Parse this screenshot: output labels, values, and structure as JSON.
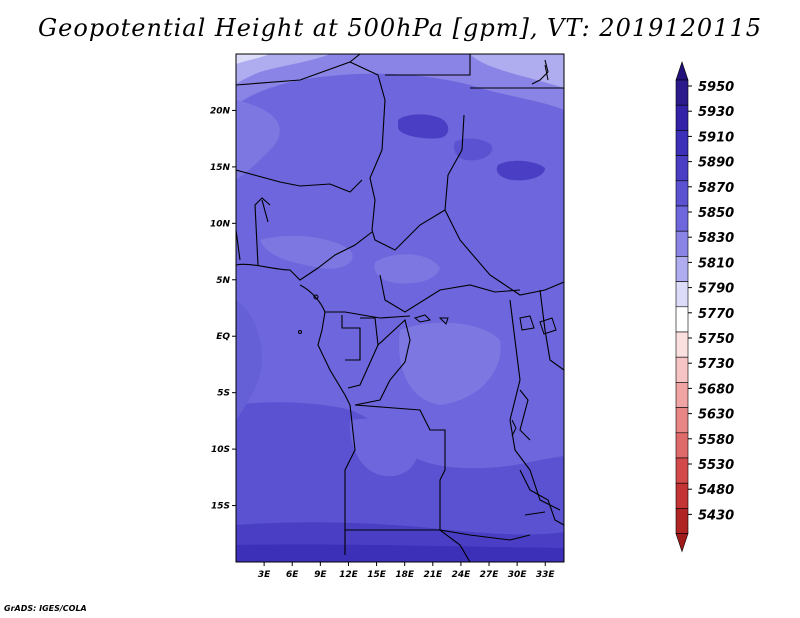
{
  "title": "Geopotential Height at 500hPa [gpm], VT: 2019120115",
  "footer": "GrADS: IGES/COLA",
  "map": {
    "lon_range": [
      0,
      35
    ],
    "lat_range": [
      -20,
      25
    ],
    "lat_ticks": [
      {
        "value": 20,
        "label": "20N"
      },
      {
        "value": 15,
        "label": "15N"
      },
      {
        "value": 10,
        "label": "10N"
      },
      {
        "value": 5,
        "label": "5N"
      },
      {
        "value": 0,
        "label": "EQ"
      },
      {
        "value": -5,
        "label": "5S"
      },
      {
        "value": -10,
        "label": "10S"
      },
      {
        "value": -15,
        "label": "15S"
      }
    ],
    "lon_ticks": [
      {
        "value": 3,
        "label": "3E"
      },
      {
        "value": 6,
        "label": "6E"
      },
      {
        "value": 9,
        "label": "9E"
      },
      {
        "value": 12,
        "label": "12E"
      },
      {
        "value": 15,
        "label": "15E"
      },
      {
        "value": 18,
        "label": "18E"
      },
      {
        "value": 21,
        "label": "21E"
      },
      {
        "value": 24,
        "label": "24E"
      },
      {
        "value": 27,
        "label": "27E"
      },
      {
        "value": 30,
        "label": "30E"
      },
      {
        "value": 33,
        "label": "33E"
      }
    ]
  },
  "colorbar": {
    "levels": [
      {
        "label": "5950",
        "color": "#2a1a8c"
      },
      {
        "label": "5930",
        "color": "#3322a8"
      },
      {
        "label": "5910",
        "color": "#3c2fb8"
      },
      {
        "label": "5890",
        "color": "#4a3fc4"
      },
      {
        "label": "5870",
        "color": "#5a52d0"
      },
      {
        "label": "5850",
        "color": "#6d66dc"
      },
      {
        "label": "5830",
        "color": "#8a84e6"
      },
      {
        "label": "5810",
        "color": "#b0acf0"
      },
      {
        "label": "5790",
        "color": "#dddcf8"
      },
      {
        "label": "5770",
        "color": "#ffffff"
      },
      {
        "label": "5750",
        "color": "#fbe0e0"
      },
      {
        "label": "5730",
        "color": "#f6c4c4"
      },
      {
        "label": "5680",
        "color": "#f0a4a4"
      },
      {
        "label": "5630",
        "color": "#e88686"
      },
      {
        "label": "5580",
        "color": "#de6a6a"
      },
      {
        "label": "5530",
        "color": "#d44a4a"
      },
      {
        "label": "5480",
        "color": "#c43434"
      },
      {
        "label": "5430",
        "color": "#b02424"
      }
    ],
    "top_arrow_color": "#23127a",
    "bottom_arrow_color": "#a11a1a"
  }
}
